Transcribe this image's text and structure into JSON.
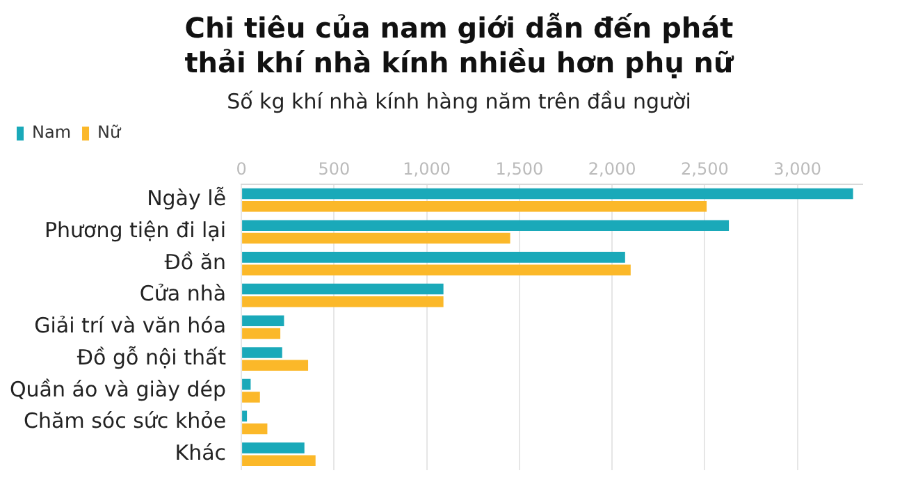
{
  "chart_data": {
    "type": "bar",
    "orientation": "horizontal",
    "title": "Chi tiêu của nam giới dẫn đến phát thải khí nhà kính nhiều hơn phụ nữ",
    "subtitle": "Số kg khí nhà kính hàng năm trên đầu người",
    "categories": [
      "Ngày lễ",
      "Phương tiện đi lại",
      "Đồ ăn",
      "Cửa nhà",
      "Giải trí và văn hóa",
      "Đồ gỗ nội thất",
      "Quần áo và giày dép",
      "Chăm sóc sức khỏe",
      "Khác"
    ],
    "series": [
      {
        "name": "Nam",
        "color": "#1aa9b9",
        "values": [
          3300,
          2630,
          2070,
          1090,
          230,
          220,
          50,
          30,
          340
        ]
      },
      {
        "name": "Nữ",
        "color": "#fbb829",
        "values": [
          2510,
          1450,
          2100,
          1090,
          210,
          360,
          100,
          140,
          400
        ]
      }
    ],
    "xlim": [
      0,
      3350
    ],
    "xticks": [
      0,
      500,
      {
        "value": 1000,
        "label": "1,000"
      },
      {
        "value": 1500,
        "label": "1,500"
      },
      {
        "value": 2000,
        "label": "2,000"
      },
      {
        "value": 2500,
        "label": "2,500"
      },
      {
        "value": 3000,
        "label": "3,000"
      }
    ],
    "grid": "x",
    "legend": "top left"
  }
}
